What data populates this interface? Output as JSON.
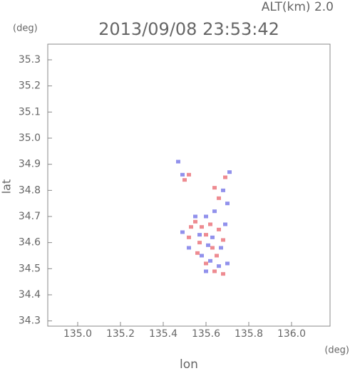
{
  "chart_data": {
    "type": "scatter",
    "title": "2013/09/08 23:53:42",
    "subtitle": "ALT(km) 2.0",
    "y_unit": "(deg)",
    "x_unit": "(deg)",
    "xlabel": "lon",
    "ylabel": "lat",
    "xlim": [
      134.86,
      136.18
    ],
    "ylim": [
      34.28,
      35.36
    ],
    "xticks": [
      {
        "value": 135,
        "label": "135.0"
      },
      135.2,
      135.4,
      135.6,
      135.8,
      {
        "value": 136,
        "label": "136.0"
      }
    ],
    "yticks": [
      34.3,
      34.4,
      34.5,
      34.6,
      34.7,
      34.8,
      34.9,
      {
        "value": 35,
        "label": "35.0"
      },
      35.1,
      35.2,
      35.3
    ],
    "series": [
      {
        "color": "#e8646c",
        "x": [
          135.5,
          135.52,
          135.64,
          135.69,
          135.66,
          135.55,
          135.58,
          135.62,
          135.66,
          135.52,
          135.6,
          135.57,
          135.63,
          135.65,
          135.6,
          135.64,
          135.68,
          135.56,
          135.68,
          135.53
        ],
        "y": [
          34.84,
          34.86,
          34.81,
          34.85,
          34.77,
          34.68,
          34.66,
          34.67,
          34.65,
          34.62,
          34.63,
          34.6,
          34.58,
          34.55,
          34.52,
          34.49,
          34.48,
          34.56,
          34.61,
          34.66
        ]
      },
      {
        "color": "#6c6ce6",
        "x": [
          135.47,
          135.49,
          135.71,
          135.68,
          135.7,
          135.6,
          135.49,
          135.57,
          135.61,
          135.63,
          135.67,
          135.58,
          135.62,
          135.66,
          135.6,
          135.7,
          135.55,
          135.64,
          135.52,
          135.69
        ],
        "y": [
          34.91,
          34.86,
          34.87,
          34.8,
          34.75,
          34.7,
          34.64,
          34.63,
          34.59,
          34.62,
          34.58,
          34.55,
          34.53,
          34.51,
          34.49,
          34.52,
          34.7,
          34.72,
          34.58,
          34.67
        ]
      }
    ]
  }
}
